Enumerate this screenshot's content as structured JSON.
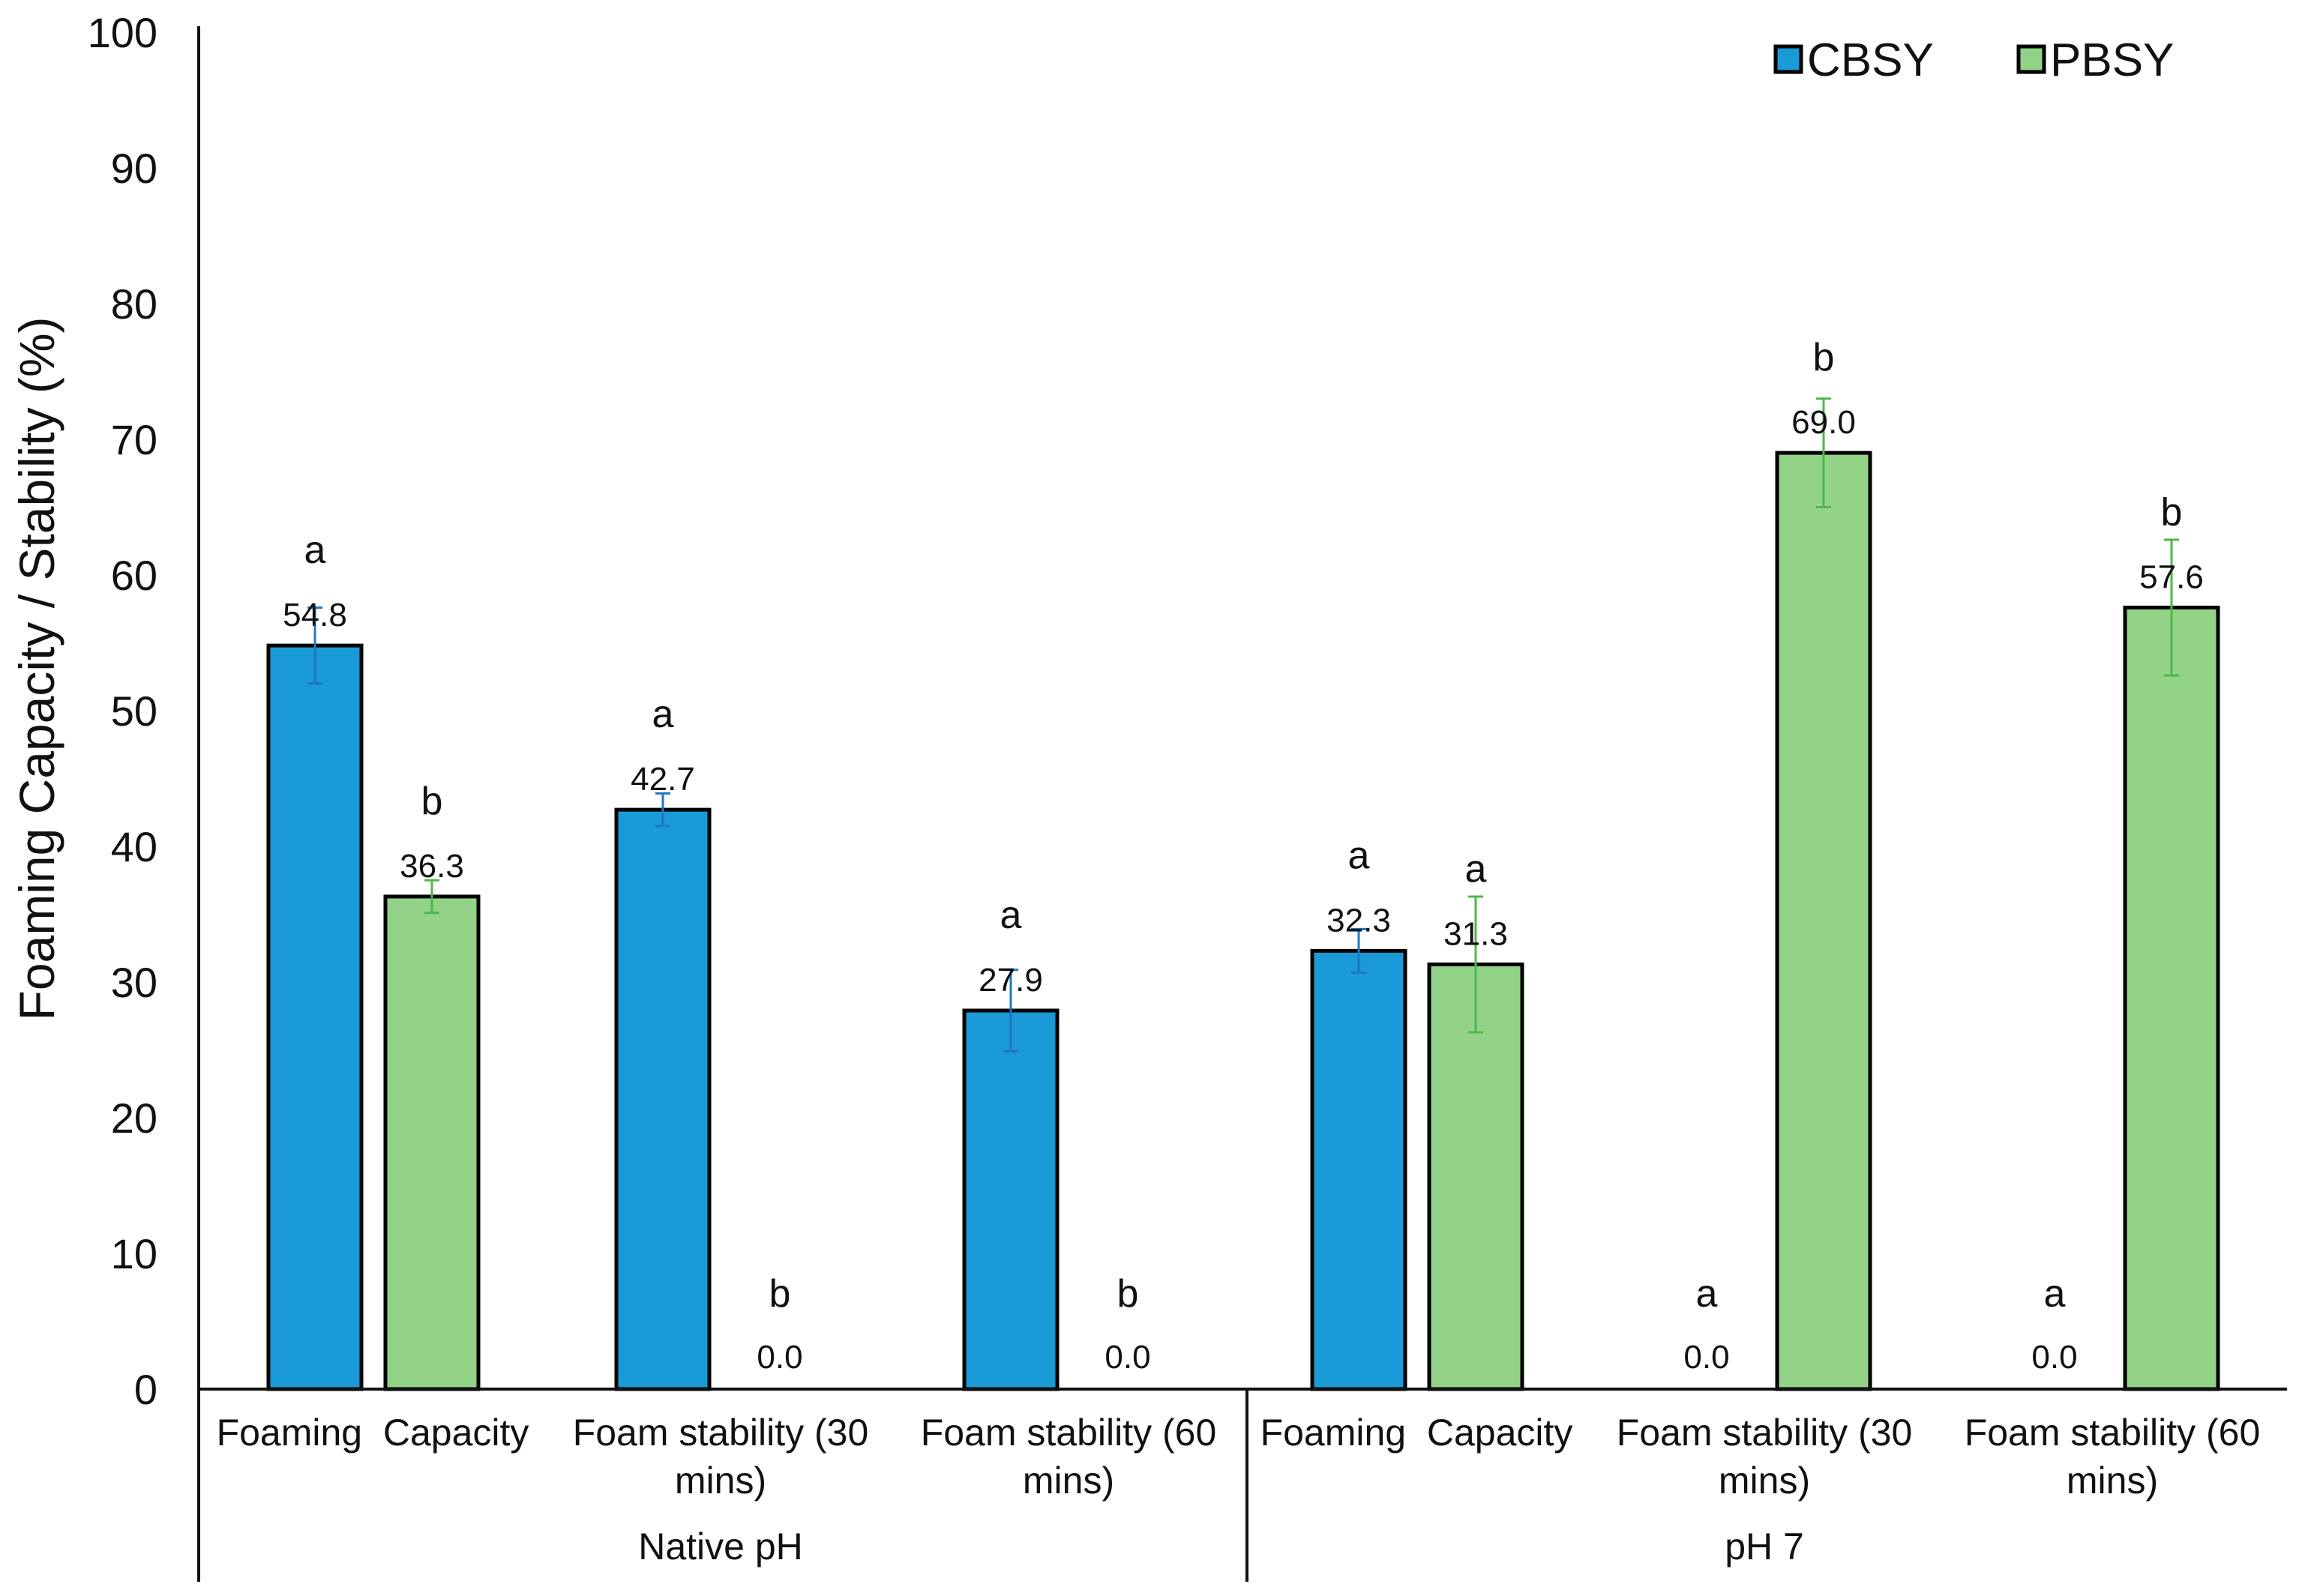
{
  "chart_data": {
    "type": "bar",
    "title": "",
    "ylabel": "Foaming Capacity / Stability (%)",
    "xlabel": "",
    "ylim": [
      0,
      100
    ],
    "yticks": [
      0,
      10,
      20,
      30,
      40,
      50,
      60,
      70,
      80,
      90,
      100
    ],
    "legend_position": "top-right",
    "colors": {
      "CBSY": "#1A9AD6",
      "PBSY": "#92D388"
    },
    "error_colors": {
      "CBSY": "#1F77C0",
      "PBSY": "#4FB84A"
    },
    "groups": [
      {
        "label": "Native pH",
        "categories": [
          {
            "label_lines": [
              "Foaming  Capacity"
            ],
            "bars": [
              {
                "series": "CBSY",
                "value": 54.8,
                "err": 2.8,
                "label": "54.8",
                "sig": "a"
              },
              {
                "series": "PBSY",
                "value": 36.3,
                "err": 1.2,
                "label": "36.3",
                "sig": "b"
              }
            ]
          },
          {
            "label_lines": [
              "Foam stability (30",
              "mins)"
            ],
            "bars": [
              {
                "series": "CBSY",
                "value": 42.7,
                "err": 1.2,
                "label": "42.7",
                "sig": "a"
              },
              {
                "series": "PBSY",
                "value": 0.0,
                "err": 0,
                "label": "0.0",
                "sig": "b"
              }
            ]
          },
          {
            "label_lines": [
              "Foam stability (60",
              "mins)"
            ],
            "bars": [
              {
                "series": "CBSY",
                "value": 27.9,
                "err": 3.0,
                "label": "27.9",
                "sig": "a"
              },
              {
                "series": "PBSY",
                "value": 0.0,
                "err": 0,
                "label": "0.0",
                "sig": "b"
              }
            ]
          }
        ]
      },
      {
        "label": "pH 7",
        "categories": [
          {
            "label_lines": [
              "Foaming  Capacity"
            ],
            "bars": [
              {
                "series": "CBSY",
                "value": 32.3,
                "err": 1.6,
                "label": "32.3",
                "sig": "a"
              },
              {
                "series": "PBSY",
                "value": 31.3,
                "err": 5.0,
                "label": "31.3",
                "sig": "a"
              }
            ]
          },
          {
            "label_lines": [
              "Foam stability (30",
              "mins)"
            ],
            "bars": [
              {
                "series": "CBSY",
                "value": 0.0,
                "err": 0,
                "label": "0.0",
                "sig": "a"
              },
              {
                "series": "PBSY",
                "value": 69.0,
                "err": 4.0,
                "label": "69.0",
                "sig": "b"
              }
            ]
          },
          {
            "label_lines": [
              "Foam stability (60",
              "mins)"
            ],
            "bars": [
              {
                "series": "CBSY",
                "value": 0.0,
                "err": 0,
                "label": "0.0",
                "sig": "a"
              },
              {
                "series": "PBSY",
                "value": 57.6,
                "err": 5.0,
                "label": "57.6",
                "sig": "b"
              }
            ]
          }
        ]
      }
    ],
    "legend": [
      {
        "series": "CBSY",
        "label": "CBSY"
      },
      {
        "series": "PBSY",
        "label": "PBSY"
      }
    ]
  }
}
